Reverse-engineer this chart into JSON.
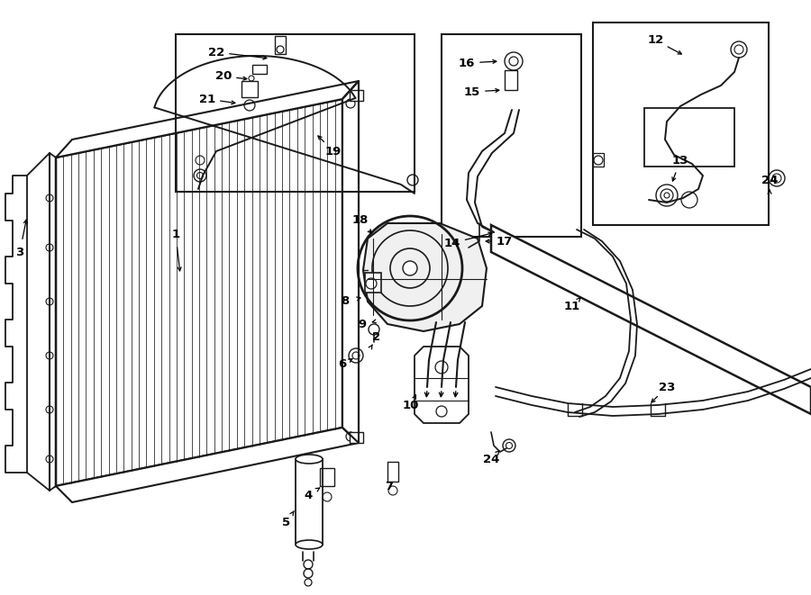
{
  "bg_color": "#ffffff",
  "line_color": "#1a1a1a",
  "fig_width": 9.0,
  "fig_height": 6.61,
  "dpi": 100
}
